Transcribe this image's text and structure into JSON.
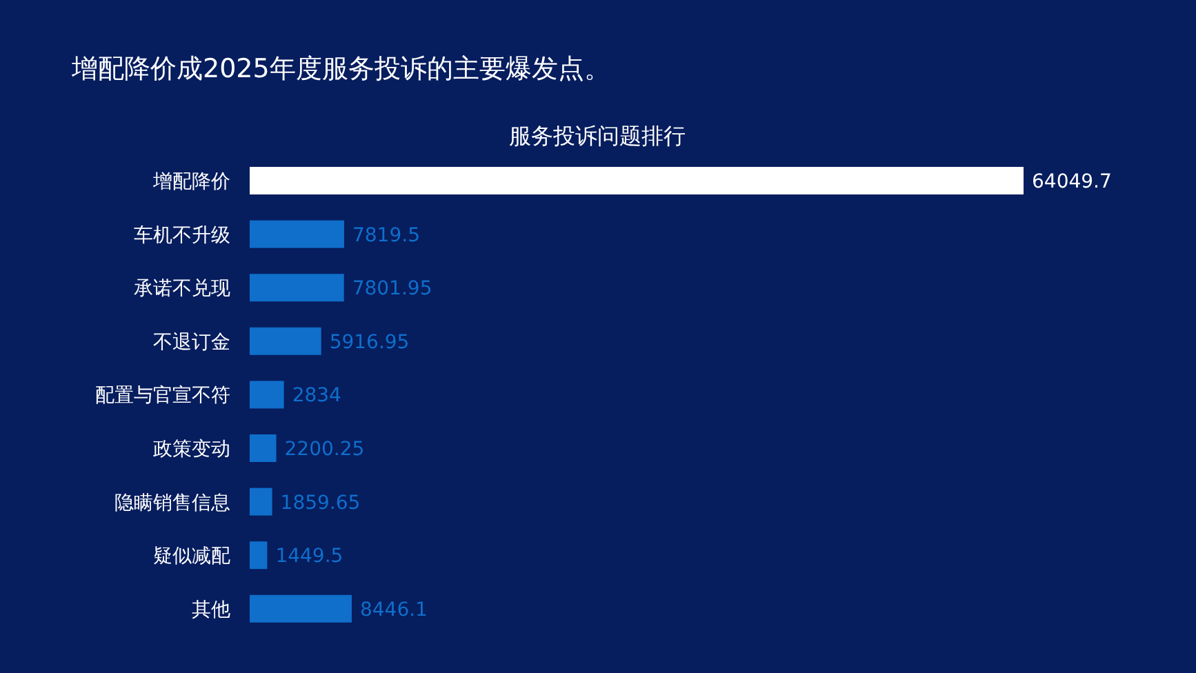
{
  "chart_data": {
    "type": "bar",
    "orientation": "horizontal",
    "title": "增配降价成2025年度服务投诉的主要爆发点。",
    "subtitle": "服务投诉问题排行",
    "categories": [
      "增配降价",
      "车机不升级",
      "承诺不兑现",
      "不退订金",
      "配置与官宣不符",
      "政策变动",
      "隐瞒销售信息",
      "疑似减配",
      "其他"
    ],
    "values": [
      64049.7,
      7819.5,
      7801.95,
      5916.95,
      2834,
      2200.25,
      1859.65,
      1449.5,
      8446.1
    ],
    "colors": [
      "#ffffff",
      "#0f6fcb",
      "#0f6fcb",
      "#0f6fcb",
      "#0f6fcb",
      "#0f6fcb",
      "#0f6fcb",
      "#0f6fcb",
      "#0f6fcb"
    ],
    "data_labels": true
  }
}
